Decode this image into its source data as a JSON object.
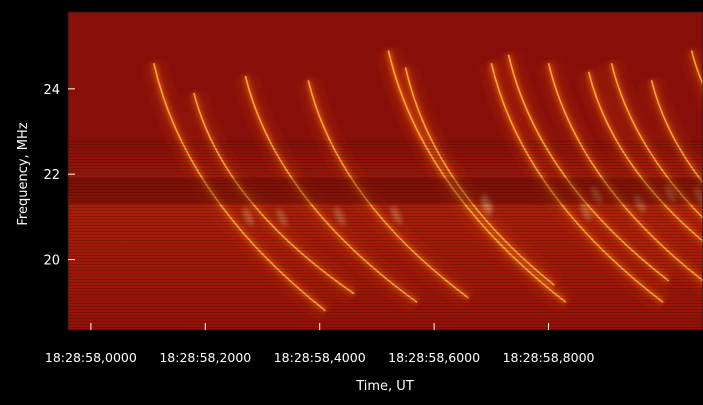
{
  "chart_data": {
    "type": "heatmap",
    "title": "",
    "xlabel": "Time, UT",
    "ylabel": "Frequency, MHz",
    "x_tick_labels": [
      "18:28:58,0000",
      "18:28:58,2000",
      "18:28:58,4000",
      "18:28:58,6000",
      "18:28:58,8000"
    ],
    "x_ticks": [
      0.0,
      0.2,
      0.4,
      0.6,
      0.8
    ],
    "xlim": [
      -0.04,
      1.07
    ],
    "y_tick_labels": [
      "20",
      "22",
      "24"
    ],
    "y_ticks": [
      20,
      22,
      24
    ],
    "ylim": [
      18.35,
      25.8
    ],
    "colormap": [
      "#5c0000",
      "#8f0a05",
      "#c2300d",
      "#e8620f",
      "#ffb040",
      "#ffe7a8"
    ],
    "background_level": "#860f0a",
    "grid": false,
    "bursts": [
      {
        "t": 0.11,
        "f_top": 24.6,
        "f_bottom": 18.8,
        "drift": 0.3,
        "intensity": 0.8
      },
      {
        "t": 0.18,
        "f_top": 23.9,
        "f_bottom": 19.2,
        "drift": 0.28,
        "intensity": 0.7
      },
      {
        "t": 0.27,
        "f_top": 24.3,
        "f_bottom": 19.0,
        "drift": 0.3,
        "intensity": 0.75
      },
      {
        "t": 0.38,
        "f_top": 24.2,
        "f_bottom": 19.1,
        "drift": 0.28,
        "intensity": 0.8
      },
      {
        "t": 0.52,
        "f_top": 24.9,
        "f_bottom": 19.0,
        "drift": 0.31,
        "intensity": 0.9
      },
      {
        "t": 0.55,
        "f_top": 24.5,
        "f_bottom": 19.4,
        "drift": 0.26,
        "intensity": 0.7
      },
      {
        "t": 0.7,
        "f_top": 24.6,
        "f_bottom": 19.0,
        "drift": 0.3,
        "intensity": 0.85
      },
      {
        "t": 0.73,
        "f_top": 24.8,
        "f_bottom": 19.5,
        "drift": 0.28,
        "intensity": 0.75
      },
      {
        "t": 0.8,
        "f_top": 24.6,
        "f_bottom": 19.3,
        "drift": 0.29,
        "intensity": 0.8
      },
      {
        "t": 0.87,
        "f_top": 24.4,
        "f_bottom": 19.8,
        "drift": 0.26,
        "intensity": 0.8
      },
      {
        "t": 0.91,
        "f_top": 24.6,
        "f_bottom": 19.6,
        "drift": 0.28,
        "intensity": 0.75
      },
      {
        "t": 0.98,
        "f_top": 24.2,
        "f_bottom": 19.8,
        "drift": 0.25,
        "intensity": 0.7
      },
      {
        "t": 1.05,
        "f_top": 24.9,
        "f_bottom": 21.0,
        "drift": 0.22,
        "intensity": 0.6
      }
    ]
  }
}
